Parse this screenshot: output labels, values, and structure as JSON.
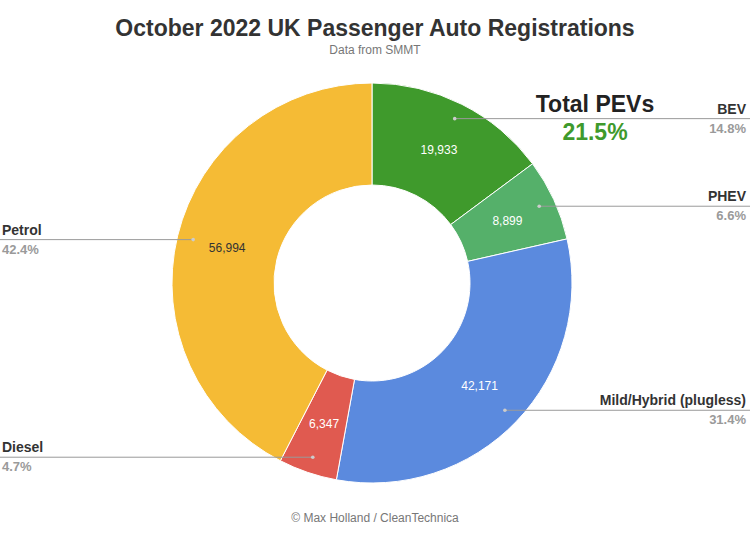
{
  "chart_data": {
    "type": "donut",
    "title": "October 2022 UK Passenger Auto Registrations",
    "subtitle": "Data from SMMT",
    "credit": "© Max Holland / CleanTechnica",
    "categories": [
      "BEV",
      "PHEV",
      "Mild/Hybrid (plugless)",
      "Diesel",
      "Petrol"
    ],
    "values": [
      19933,
      8899,
      42171,
      6347,
      56994
    ],
    "value_labels": [
      "19,933",
      "8,899",
      "42,171",
      "6,347",
      "56,994"
    ],
    "shares": [
      {
        "value": 14.8,
        "label": "14.8%"
      },
      {
        "value": 6.6,
        "label": "6.6%"
      },
      {
        "value": 31.4,
        "label": "31.4%"
      },
      {
        "value": 4.7,
        "label": "4.7%"
      },
      {
        "value": 42.4,
        "label": "42.4%"
      }
    ],
    "colors": [
      "#3f9a2c",
      "#55b06a",
      "#5b8ade",
      "#e05a50",
      "#f5bb35"
    ],
    "data_labels": true,
    "annotation": {
      "text": "Total PEVs",
      "value": 21.5,
      "label": "21.5%",
      "color": "#3f9a2c"
    }
  }
}
